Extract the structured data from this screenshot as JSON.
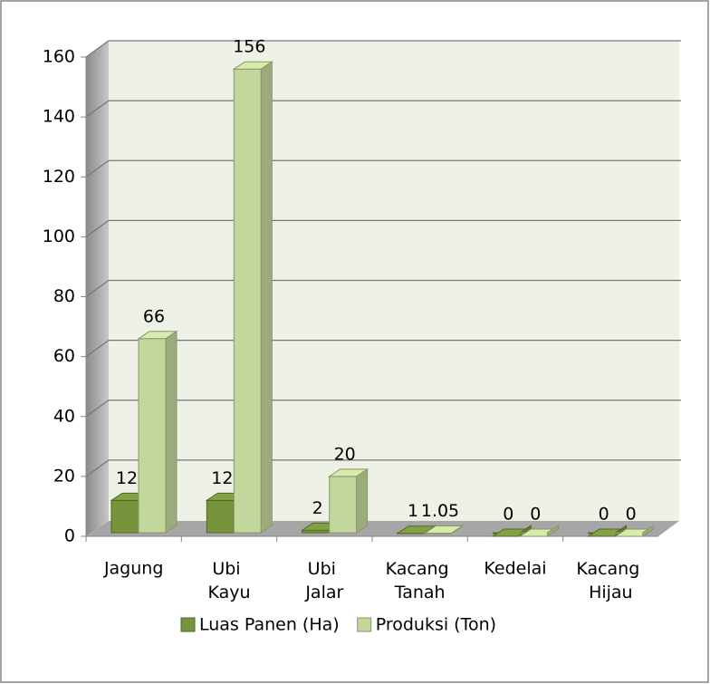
{
  "chart_data": {
    "type": "bar3d",
    "categories": [
      "Jagung",
      "Ubi Kayu",
      "Ubi Jalar",
      "Kacang Tanah",
      "Kedelai",
      "Kacang Hijau"
    ],
    "series": [
      {
        "name": "Luas Panen (Ha)",
        "color": "#77933c",
        "values": [
          12,
          12,
          2,
          1,
          0,
          0
        ]
      },
      {
        "name": "Produksi (Ton)",
        "color": "#c3d69b",
        "values": [
          66,
          156,
          20,
          1.05,
          0,
          0
        ]
      }
    ],
    "ylim": [
      0,
      160
    ],
    "yticks": [
      0,
      20,
      40,
      60,
      80,
      100,
      120,
      140,
      160
    ],
    "grid": true,
    "legend": "bottom"
  }
}
